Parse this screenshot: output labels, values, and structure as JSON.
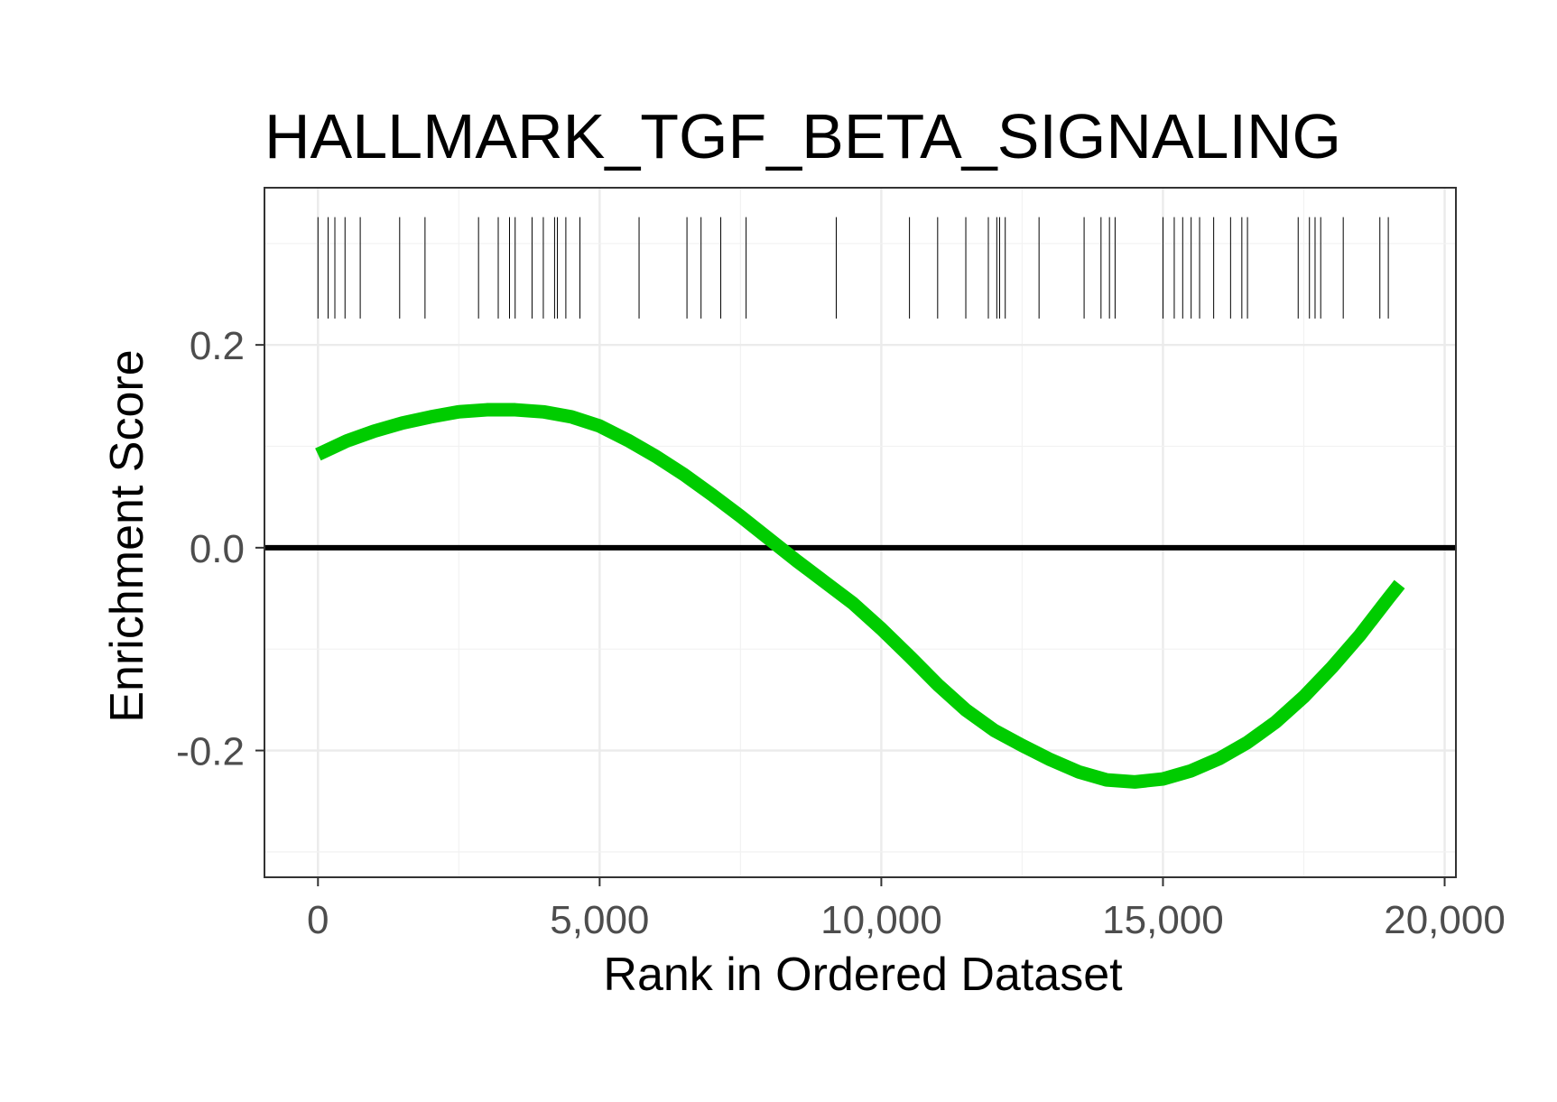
{
  "chart_data": {
    "type": "line",
    "title": "HALLMARK_TGF_BETA_SIGNALING",
    "xlabel": "Rank in Ordered Dataset",
    "ylabel": "Enrichment Score",
    "xlim": [
      -950,
      20200
    ],
    "ylim": [
      -0.325,
      0.355
    ],
    "x_ticks": [
      0,
      5000,
      10000,
      15000,
      20000
    ],
    "x_tick_labels": [
      "0",
      "5,000",
      "10,000",
      "15,000",
      "20,000"
    ],
    "y_ticks": [
      -0.2,
      0.0,
      0.2
    ],
    "y_tick_labels": [
      "-0.2",
      "0.0",
      "0.2"
    ],
    "grid": true,
    "reference_line_y": 0,
    "series": [
      {
        "color": "#00cc00",
        "x": [
          0,
          500,
          1000,
          1500,
          2000,
          2500,
          3000,
          3500,
          4000,
          4500,
          5000,
          5500,
          6000,
          6500,
          7000,
          7500,
          8000,
          8500,
          9000,
          9500,
          10000,
          10500,
          11000,
          11500,
          12000,
          12500,
          13000,
          13500,
          14000,
          14500,
          15000,
          15500,
          16000,
          16500,
          17000,
          17500,
          18000,
          18500,
          19000,
          19200
        ],
        "y": [
          0.092,
          0.105,
          0.115,
          0.123,
          0.129,
          0.134,
          0.136,
          0.136,
          0.134,
          0.129,
          0.12,
          0.106,
          0.09,
          0.072,
          0.052,
          0.031,
          0.009,
          -0.013,
          -0.034,
          -0.055,
          -0.08,
          -0.107,
          -0.135,
          -0.16,
          -0.18,
          -0.195,
          -0.209,
          -0.221,
          -0.229,
          -0.231,
          -0.228,
          -0.22,
          -0.208,
          -0.192,
          -0.172,
          -0.147,
          -0.118,
          -0.086,
          -0.05,
          -0.036
        ]
      }
    ],
    "gene_hits": [
      0,
      180,
      300,
      480,
      750,
      1450,
      1900,
      2850,
      3200,
      3400,
      3500,
      3800,
      4000,
      4200,
      4250,
      4400,
      4650,
      5700,
      6550,
      6800,
      7150,
      7600,
      9200,
      10500,
      11000,
      11500,
      11900,
      12050,
      12100,
      12200,
      12800,
      13600,
      13900,
      14050,
      14150,
      15000,
      15200,
      15350,
      15500,
      15650,
      15900,
      16200,
      16400,
      16500,
      17400,
      17600,
      17700,
      17800,
      18200,
      18850,
      19000
    ]
  }
}
